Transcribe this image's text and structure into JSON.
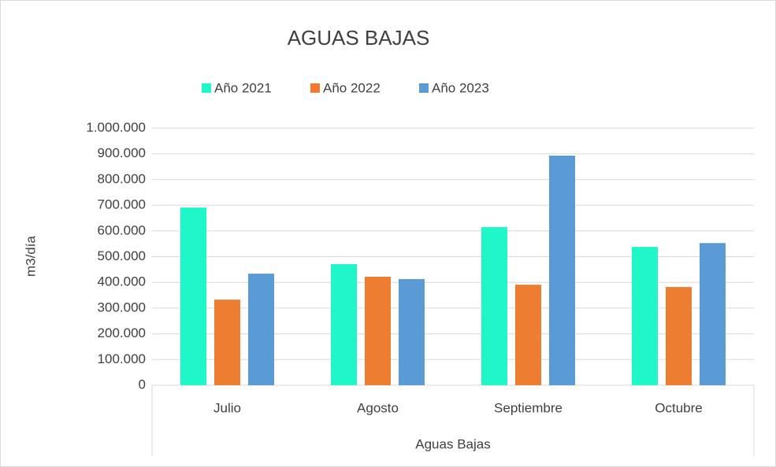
{
  "chart_data": {
    "type": "bar",
    "title": "AGUAS BAJAS",
    "y_label": "m3/día",
    "x_label": "Aguas Bajas",
    "categories": [
      "Julio",
      "Agosto",
      "Septiembre",
      "Octubre"
    ],
    "series": [
      {
        "name": "Año 2021",
        "color": "#1ff7c9",
        "values": [
          691000,
          471000,
          615000,
          538000
        ]
      },
      {
        "name": "Año 2022",
        "color": "#ed7d31",
        "values": [
          333000,
          422000,
          391000,
          382000
        ]
      },
      {
        "name": "Año 2023",
        "color": "#5b9bd5",
        "values": [
          434000,
          413000,
          893000,
          553000
        ]
      }
    ],
    "ylim": [
      0,
      1000000
    ],
    "yticks": [
      0,
      {
        "value": 100000,
        "label": "100.000"
      },
      {
        "value": 200000,
        "label": "200.000"
      },
      {
        "value": 300000,
        "label": "300.000"
      },
      {
        "value": 400000,
        "label": "400.000"
      },
      {
        "value": 500000,
        "label": "500.000"
      },
      {
        "value": 600000,
        "label": "600.000"
      },
      {
        "value": 700000,
        "label": "700.000"
      },
      {
        "value": 800000,
        "label": "800.000"
      },
      {
        "value": 900000,
        "label": "900.000"
      },
      {
        "value": 1000000,
        "label": "1.000.000"
      }
    ],
    "grid": true,
    "legend": "top"
  }
}
